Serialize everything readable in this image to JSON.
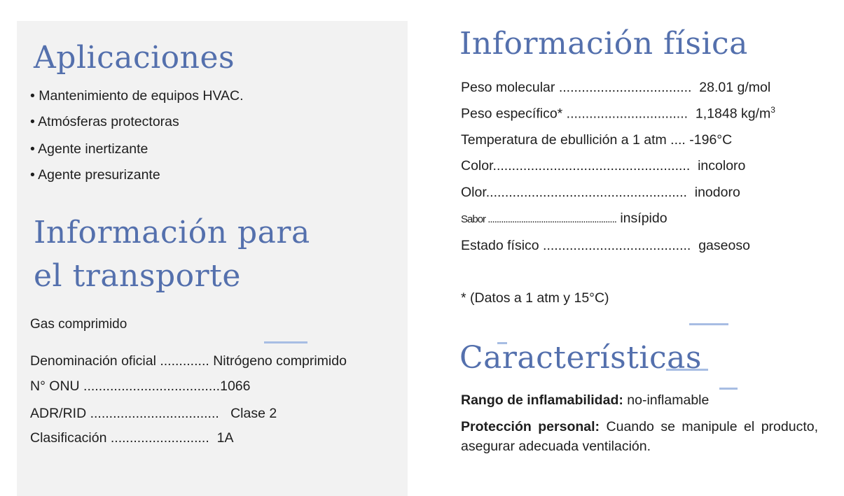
{
  "aplicaciones": {
    "title": "Aplicaciones",
    "items": [
      "• Mantenimiento de equipos HVAC.",
      "• Atmósferas protectoras",
      "• Agente inertizante",
      "• Agente presurizante"
    ]
  },
  "transporte": {
    "title_line1": "Información para",
    "title_line2": "el transporte",
    "subtitle": "Gas comprimido",
    "rows": [
      {
        "label": "Denominación oficial .............",
        "value": "Nitrógeno comprimido"
      },
      {
        "label": "N° ONU ....................................",
        "value": "1066"
      },
      {
        "label": "ADR/RID ..................................",
        "value": "Clase 2"
      },
      {
        "label": "Clasificación ..........................",
        "value": "1A"
      }
    ]
  },
  "fisica": {
    "title": "Información física",
    "rows": [
      {
        "label": "Peso molecular ...................................",
        "value": "28.01 g/mol",
        "sup": ""
      },
      {
        "label": "Peso específico* ................................",
        "value": "1,1848 kg/m",
        "sup": "3"
      },
      {
        "label": "Temperatura de ebullición a 1 atm ....",
        "value": "-196°C",
        "sup": ""
      },
      {
        "label": "Color....................................................",
        "value": "incoloro",
        "sup": ""
      },
      {
        "label": "Olor.....................................................",
        "value": "inodoro",
        "sup": ""
      },
      {
        "label": "Sabor ..........................................................",
        "value": "insípido",
        "sup": ""
      },
      {
        "label": "Estado físico .......................................",
        "value": "gaseoso",
        "sup": ""
      }
    ],
    "note": "* (Datos a 1 atm y 15°C)"
  },
  "caracteristicas": {
    "title": "Características",
    "inflamabilidad_label": "Rango de inflamabilidad:",
    "inflamabilidad_value": " no-inflamable",
    "proteccion_label": "Protección personal:",
    "proteccion_value": " Cuando se manipule el producto, asegurar adecuada ventilación."
  },
  "colors": {
    "heading": "#5470ad",
    "panel": "#f2f2f2",
    "accent_line": "#a7bde3"
  }
}
